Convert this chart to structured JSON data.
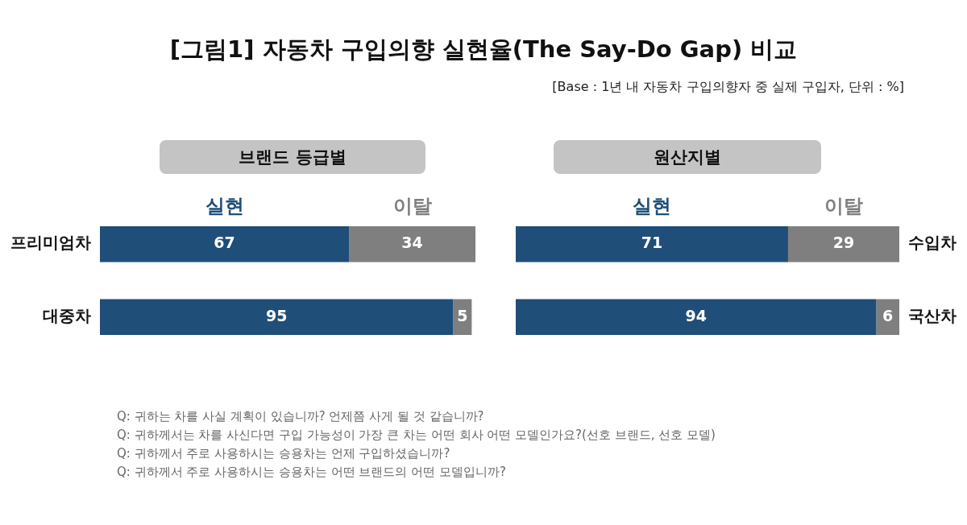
{
  "chart_data": [
    {
      "type": "other",
      "title": "[그림1] 자동차 구입의향 실현율(The Say-Do Gap) 비교",
      "subtitle": "[Base : 1년 내 자동차 구입의향자 중 실제 구입자, 단위 : %]",
      "annotations": [
        "Q: 귀하는 차를 사실 계획이 있습니까? 언제쯤 사게 될 것 같습니까?",
        "Q: 귀하께서는 차를 사신다면 구입 가능성이 가장 큰 차는 어떤 회사 어떤 모델인가요?(선호 브랜드, 선호 모델)",
        "Q: 귀하께서 주로 사용하시는 승용차는 언제 구입하셨습니까?",
        "Q: 귀하께서 주로 사용하시는 승용차는 어떤 브랜드의 어떤 모델입니까?"
      ]
    },
    {
      "type": "bar",
      "orientation": "horizontal",
      "stacked": true,
      "data_labels": true,
      "legend": "top",
      "title": "브랜드 등급별",
      "categories": [
        "프리미엄차",
        "대중차"
      ],
      "series": [
        {
          "name": "실현",
          "color": "#1f4e79",
          "values": [
            67,
            95
          ]
        },
        {
          "name": "이탈",
          "color": "#7f7f7f",
          "values": [
            34,
            5
          ]
        }
      ]
    },
    {
      "type": "bar",
      "orientation": "horizontal",
      "stacked": true,
      "data_labels": true,
      "legend": "top",
      "title": "원산지별",
      "categories": [
        "수입차",
        "국산차"
      ],
      "series": [
        {
          "name": "실현",
          "color": "#1f4e79",
          "values": [
            71,
            94
          ]
        },
        {
          "name": "이탈",
          "color": "#7f7f7f",
          "values": [
            29,
            6
          ]
        }
      ]
    }
  ]
}
